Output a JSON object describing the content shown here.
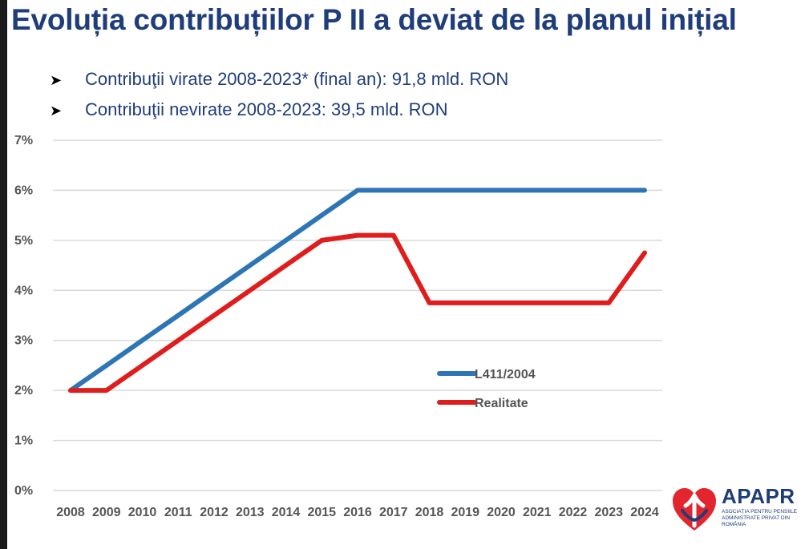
{
  "slide": {
    "title": "Evoluția contribuțiilor P II a deviat de la planul inițial",
    "bullets": [
      "Contribuţii virate 2008-2023* (final an): 91,8 mld. RON",
      "Contribuţii nevirate 2008-2023: 39,5 mld. RON"
    ],
    "bullet_icon": "arrowhead-bullet-icon"
  },
  "chart_data": {
    "type": "line",
    "title": "",
    "xlabel": "",
    "ylabel": "",
    "categories": [
      "2008",
      "2009",
      "2010",
      "2011",
      "2012",
      "2013",
      "2014",
      "2015",
      "2016",
      "2017",
      "2018",
      "2019",
      "2020",
      "2021",
      "2022",
      "2023",
      "2024"
    ],
    "y_ticks": [
      "0%",
      "1%",
      "2%",
      "3%",
      "4%",
      "5%",
      "6%",
      "7%"
    ],
    "ylim": [
      0,
      7
    ],
    "grid": true,
    "legend_position": "center-right",
    "series": [
      {
        "name": "L411/2004",
        "color": "#2e75b6",
        "values": [
          2,
          2.5,
          3,
          3.5,
          4,
          4.5,
          5,
          5.5,
          6,
          6,
          6,
          6,
          6,
          6,
          6,
          6,
          6
        ]
      },
      {
        "name": "Realitate",
        "color": "#e01d1d",
        "values": [
          2,
          2,
          2.5,
          3,
          3.5,
          4,
          4.5,
          5,
          5.1,
          5.1,
          3.75,
          3.75,
          3.75,
          3.75,
          3.75,
          3.75,
          4.75
        ]
      }
    ]
  },
  "logo": {
    "name": "APAPR",
    "subtitle": "Asociația pentru Pensiile Administrate Privat din România",
    "icon": "apapr-heart-icon",
    "colors": {
      "red": "#e3262e",
      "blue": "#1f3d7a"
    }
  }
}
